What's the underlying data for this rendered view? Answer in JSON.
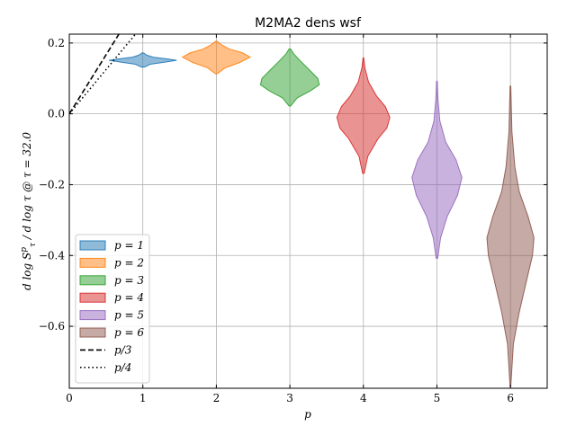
{
  "chart_data": {
    "type": "violin",
    "title": "M2MA2 dens wsf",
    "xlabel": "p",
    "ylabel": "d log S_τ^p / d log τ @ τ = 32.0",
    "xlim": [
      0,
      6.5
    ],
    "ylim": [
      -0.775,
      0.225
    ],
    "xticks": [
      0,
      1,
      2,
      3,
      4,
      5,
      6
    ],
    "xtick_labels": [
      "0",
      "1",
      "2",
      "3",
      "4",
      "5",
      "6"
    ],
    "yticks": [
      -0.6,
      -0.4,
      -0.2,
      0.0,
      0.2
    ],
    "ytick_labels": [
      "−0.6",
      "−0.4",
      "−0.2",
      "0.0",
      "0.2"
    ],
    "grid": true,
    "legend_position": "lower-left",
    "violins": [
      {
        "name": "p = 1",
        "x": 1,
        "color": "#1f77b4",
        "min": 0.132,
        "max": 0.172,
        "profile": [
          [
            0.132,
            0.02
          ],
          [
            0.14,
            0.1
          ],
          [
            0.146,
            0.3
          ],
          [
            0.151,
            0.46
          ],
          [
            0.155,
            0.34
          ],
          [
            0.16,
            0.14
          ],
          [
            0.166,
            0.05
          ],
          [
            0.172,
            0.01
          ]
        ]
      },
      {
        "name": "p = 2",
        "x": 2,
        "color": "#ff7f0e",
        "min": 0.113,
        "max": 0.205,
        "profile": [
          [
            0.113,
            0.01
          ],
          [
            0.13,
            0.12
          ],
          [
            0.145,
            0.32
          ],
          [
            0.16,
            0.46
          ],
          [
            0.172,
            0.36
          ],
          [
            0.183,
            0.18
          ],
          [
            0.195,
            0.07
          ],
          [
            0.205,
            0.01
          ]
        ]
      },
      {
        "name": "p = 3",
        "x": 3,
        "color": "#2ca02c",
        "min": 0.022,
        "max": 0.183,
        "profile": [
          [
            0.022,
            0.01
          ],
          [
            0.045,
            0.1
          ],
          [
            0.065,
            0.28
          ],
          [
            0.082,
            0.4
          ],
          [
            0.1,
            0.38
          ],
          [
            0.125,
            0.26
          ],
          [
            0.15,
            0.14
          ],
          [
            0.17,
            0.05
          ],
          [
            0.183,
            0.01
          ]
        ]
      },
      {
        "name": "p = 4",
        "x": 4,
        "color": "#d62728",
        "min": -0.168,
        "max": 0.158,
        "profile": [
          [
            -0.168,
            0.01
          ],
          [
            -0.12,
            0.06
          ],
          [
            -0.07,
            0.2
          ],
          [
            -0.04,
            0.32
          ],
          [
            -0.01,
            0.36
          ],
          [
            0.02,
            0.3
          ],
          [
            0.05,
            0.18
          ],
          [
            0.09,
            0.07
          ],
          [
            0.13,
            0.02
          ],
          [
            0.158,
            0.005
          ]
        ]
      },
      {
        "name": "p = 5",
        "x": 5,
        "color": "#9467bd",
        "min": -0.408,
        "max": 0.092,
        "profile": [
          [
            -0.408,
            0.01
          ],
          [
            -0.35,
            0.05
          ],
          [
            -0.29,
            0.14
          ],
          [
            -0.23,
            0.28
          ],
          [
            -0.18,
            0.34
          ],
          [
            -0.13,
            0.26
          ],
          [
            -0.08,
            0.12
          ],
          [
            -0.02,
            0.04
          ],
          [
            0.04,
            0.015
          ],
          [
            0.092,
            0.005
          ]
        ]
      },
      {
        "name": "p = 6",
        "x": 6,
        "color": "#8c564b",
        "min": -0.77,
        "max": 0.078,
        "profile": [
          [
            -0.77,
            0.005
          ],
          [
            -0.65,
            0.04
          ],
          [
            -0.56,
            0.12
          ],
          [
            -0.47,
            0.22
          ],
          [
            -0.4,
            0.3
          ],
          [
            -0.35,
            0.32
          ],
          [
            -0.29,
            0.24
          ],
          [
            -0.22,
            0.12
          ],
          [
            -0.15,
            0.06
          ],
          [
            -0.05,
            0.02
          ],
          [
            0.078,
            0.005
          ]
        ]
      }
    ],
    "lines": [
      {
        "name": "p/3",
        "style": "dashed",
        "x": [
          0,
          0.68
        ],
        "y": [
          0,
          0.2267
        ]
      },
      {
        "name": "p/4",
        "style": "dotted",
        "x": [
          0,
          0.9
        ],
        "y": [
          0,
          0.225
        ]
      }
    ]
  }
}
